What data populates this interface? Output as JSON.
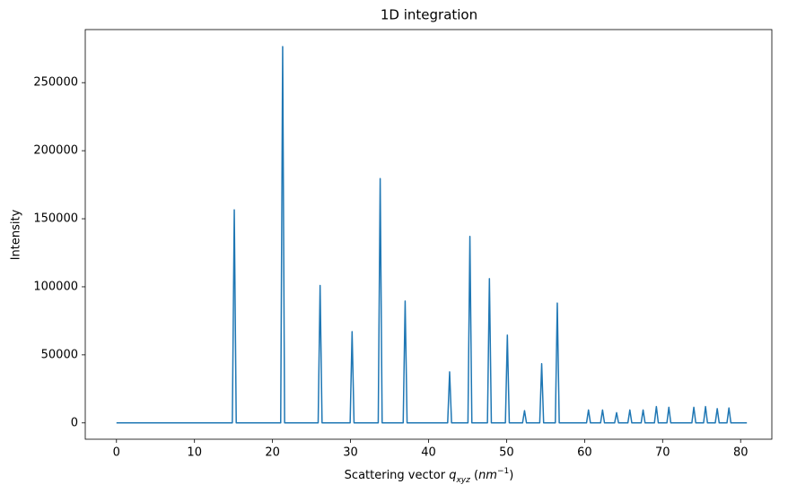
{
  "chart_data": {
    "type": "line",
    "title": "1D integration",
    "xlabel": [
      "Scattering vector ",
      "q",
      "xyz",
      " (",
      "nm",
      "−1",
      ")"
    ],
    "ylabel": "Intensity",
    "color": "#1f77b4",
    "x": [
      0,
      14.85,
      15.1,
      15.35,
      21.05,
      21.3,
      21.55,
      25.85,
      26.1,
      26.35,
      29.95,
      30.2,
      30.45,
      33.55,
      33.8,
      34.05,
      36.75,
      37.0,
      37.25,
      42.45,
      42.7,
      42.95,
      45.05,
      45.3,
      45.55,
      47.55,
      47.8,
      48.05,
      49.85,
      50.1,
      50.35,
      52.05,
      52.3,
      52.55,
      54.25,
      54.5,
      54.75,
      56.25,
      56.5,
      56.75,
      60.25,
      60.5,
      60.75,
      62.05,
      62.3,
      62.55,
      63.85,
      64.1,
      64.35,
      65.55,
      65.8,
      66.05,
      67.25,
      67.5,
      67.75,
      68.95,
      69.2,
      69.45,
      70.55,
      70.8,
      71.05,
      73.75,
      74.0,
      74.25,
      75.25,
      75.5,
      75.75,
      76.75,
      77.0,
      77.25,
      78.25,
      78.5,
      78.75,
      80.8
    ],
    "values": [
      0,
      0,
      156500,
      0,
      0,
      276500,
      0,
      0,
      101000,
      0,
      0,
      67000,
      0,
      0,
      179500,
      0,
      0,
      89500,
      0,
      0,
      37500,
      0,
      0,
      137000,
      0,
      0,
      106000,
      0,
      0,
      64500,
      0,
      0,
      9000,
      0,
      0,
      43500,
      0,
      0,
      88000,
      0,
      0,
      9500,
      0,
      0,
      9500,
      0,
      0,
      7500,
      0,
      0,
      9500,
      0,
      0,
      9500,
      0,
      0,
      12000,
      0,
      0,
      11500,
      0,
      0,
      11500,
      0,
      0,
      12000,
      0,
      0,
      10500,
      0,
      0,
      11000,
      0,
      0
    ],
    "xlim": [
      -4,
      84
    ],
    "xticks": [
      0,
      10,
      20,
      30,
      40,
      50,
      60,
      70,
      80
    ],
    "ylim": [
      -12000,
      289000
    ],
    "yticks": [
      0,
      50000,
      100000,
      150000,
      200000,
      250000
    ],
    "grid": false
  }
}
